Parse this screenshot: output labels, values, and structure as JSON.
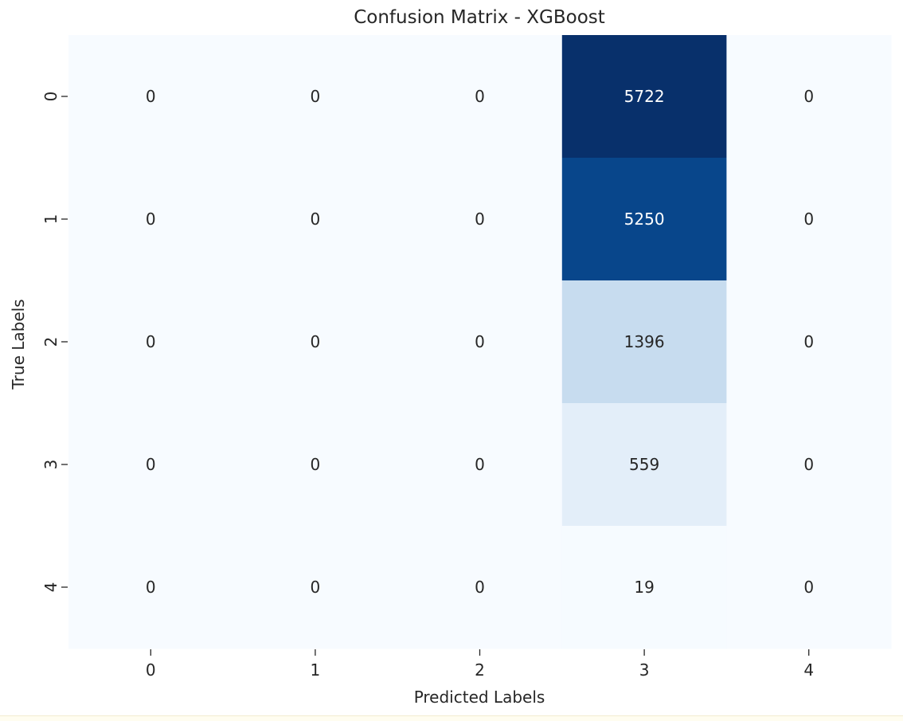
{
  "chart_data": {
    "type": "heatmap",
    "title": "Confusion Matrix - XGBoost",
    "xlabel": "Predicted Labels",
    "ylabel": "True Labels",
    "x_categories": [
      "0",
      "1",
      "2",
      "3",
      "4"
    ],
    "y_categories": [
      "0",
      "1",
      "2",
      "3",
      "4"
    ],
    "values": [
      [
        0,
        0,
        0,
        5722,
        0
      ],
      [
        0,
        0,
        0,
        5250,
        0
      ],
      [
        0,
        0,
        0,
        1396,
        0
      ],
      [
        0,
        0,
        0,
        559,
        0
      ],
      [
        0,
        0,
        0,
        19,
        0
      ]
    ],
    "colormap": "Blues",
    "colorbar": false,
    "annotations": true
  }
}
